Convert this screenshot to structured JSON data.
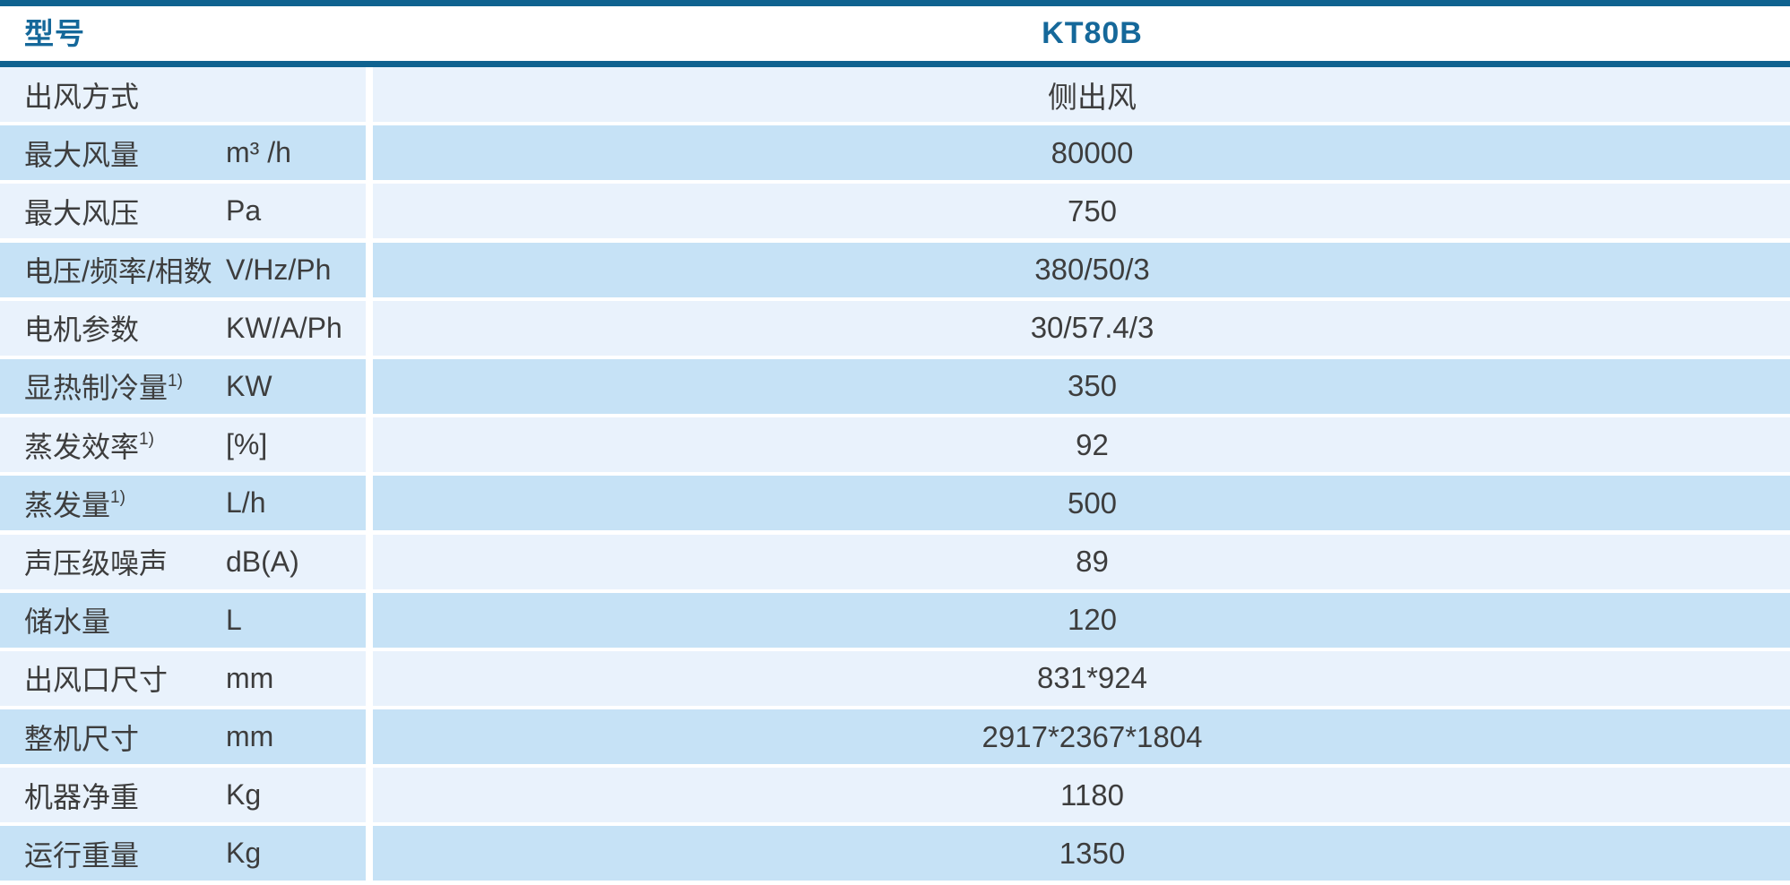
{
  "table": {
    "header": {
      "label": "型号",
      "model": "KT80B"
    },
    "rows": [
      {
        "label": "出风方式",
        "sup": "",
        "unit": "",
        "value": "侧出风"
      },
      {
        "label": "最大风量",
        "sup": "",
        "unit": "m³ /h",
        "value": "80000"
      },
      {
        "label": "最大风压",
        "sup": "",
        "unit": "Pa",
        "value": "750"
      },
      {
        "label": "电压/频率/相数",
        "sup": "",
        "unit": "V/Hz/Ph",
        "value": "380/50/3"
      },
      {
        "label": "电机参数",
        "sup": "",
        "unit": "KW/A/Ph",
        "value": "30/57.4/3"
      },
      {
        "label": "显热制冷量",
        "sup": "1)",
        "unit": "KW",
        "value": "350"
      },
      {
        "label": "蒸发效率",
        "sup": "1)",
        "unit": "[%]",
        "value": "92"
      },
      {
        "label": "蒸发量",
        "sup": "1)",
        "unit": "L/h",
        "value": "500"
      },
      {
        "label": "声压级噪声",
        "sup": "",
        "unit": "dB(A)",
        "value": "89"
      },
      {
        "label": "储水量",
        "sup": "",
        "unit": "L",
        "value": "120"
      },
      {
        "label": "出风口尺寸",
        "sup": "",
        "unit": "mm",
        "value": "831*924"
      },
      {
        "label": "整机尺寸",
        "sup": "",
        "unit": "mm",
        "value": "2917*2367*1804"
      },
      {
        "label": "机器净重",
        "sup": "",
        "unit": "Kg",
        "value": "1180"
      },
      {
        "label": "运行重量",
        "sup": "",
        "unit": "Kg",
        "value": "1350"
      }
    ],
    "colors": {
      "accent_bar": "#0F6290",
      "accent_text": "#15689A",
      "row_light": "#E9F2FC",
      "row_dark": "#C6E2F6",
      "body_text": "#3D3D3D"
    }
  }
}
